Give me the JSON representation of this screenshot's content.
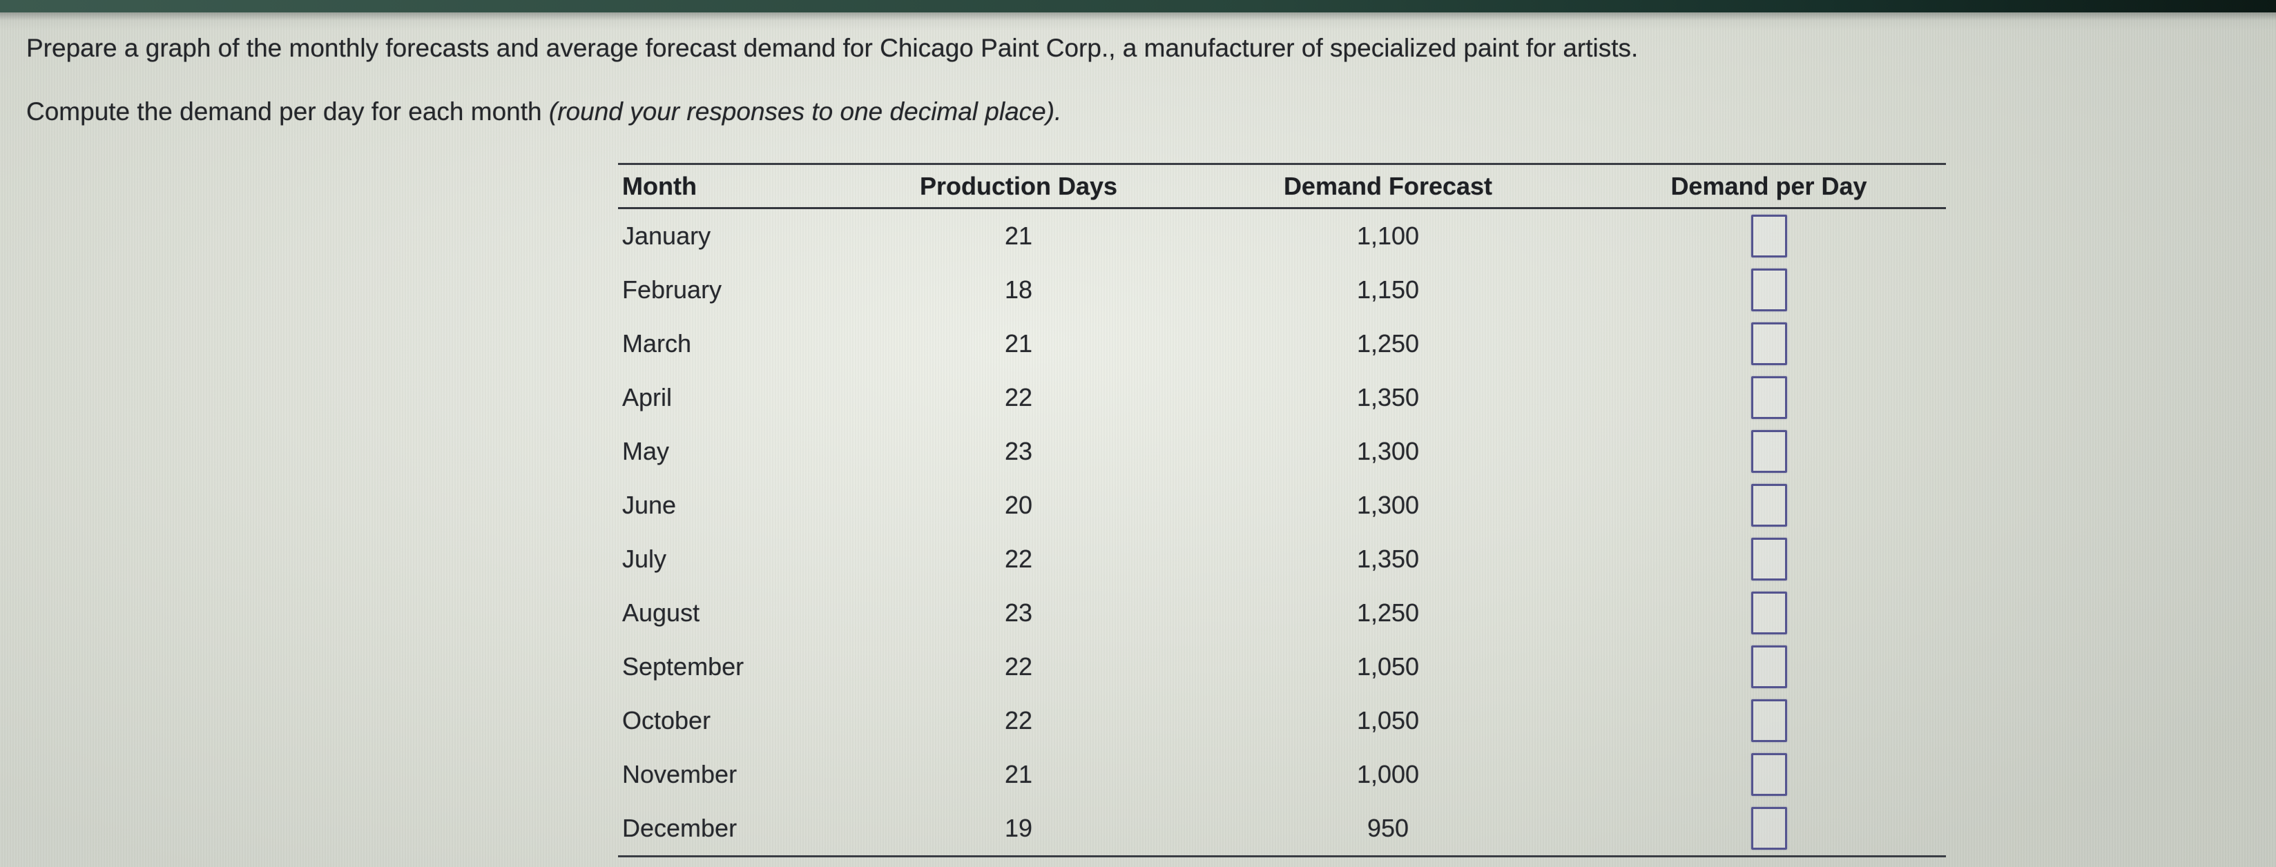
{
  "statement": {
    "line1": "Prepare a graph of the monthly forecasts and average forecast demand for Chicago Paint Corp., a manufacturer of specialized paint for artists.",
    "line2_normal": "Compute the demand per day for each month ",
    "line2_italic": "(round your responses to one decimal place)."
  },
  "table": {
    "headers": [
      "Month",
      "Production Days",
      "Demand Forecast",
      "Demand per Day"
    ],
    "rows": [
      {
        "month": "January",
        "production_days": "21",
        "demand_forecast": "1,100",
        "demand_per_day_value": ""
      },
      {
        "month": "February",
        "production_days": "18",
        "demand_forecast": "1,150",
        "demand_per_day_value": ""
      },
      {
        "month": "March",
        "production_days": "21",
        "demand_forecast": "1,250",
        "demand_per_day_value": ""
      },
      {
        "month": "April",
        "production_days": "22",
        "demand_forecast": "1,350",
        "demand_per_day_value": ""
      },
      {
        "month": "May",
        "production_days": "23",
        "demand_forecast": "1,300",
        "demand_per_day_value": ""
      },
      {
        "month": "June",
        "production_days": "20",
        "demand_forecast": "1,300",
        "demand_per_day_value": ""
      },
      {
        "month": "July",
        "production_days": "22",
        "demand_forecast": "1,350",
        "demand_per_day_value": ""
      },
      {
        "month": "August",
        "production_days": "23",
        "demand_forecast": "1,250",
        "demand_per_day_value": ""
      },
      {
        "month": "September",
        "production_days": "22",
        "demand_forecast": "1,050",
        "demand_per_day_value": ""
      },
      {
        "month": "October",
        "production_days": "22",
        "demand_forecast": "1,050",
        "demand_per_day_value": ""
      },
      {
        "month": "November",
        "production_days": "21",
        "demand_forecast": "1,000",
        "demand_per_day_value": ""
      },
      {
        "month": "December",
        "production_days": "19",
        "demand_forecast": "950",
        "demand_per_day_value": ""
      }
    ]
  },
  "colors": {
    "topbar_green": "#28453b",
    "page_background": "#dadcd4",
    "table_rule": "#3a3d44",
    "text": "#26272b",
    "answer_box_border": "#54548f"
  }
}
